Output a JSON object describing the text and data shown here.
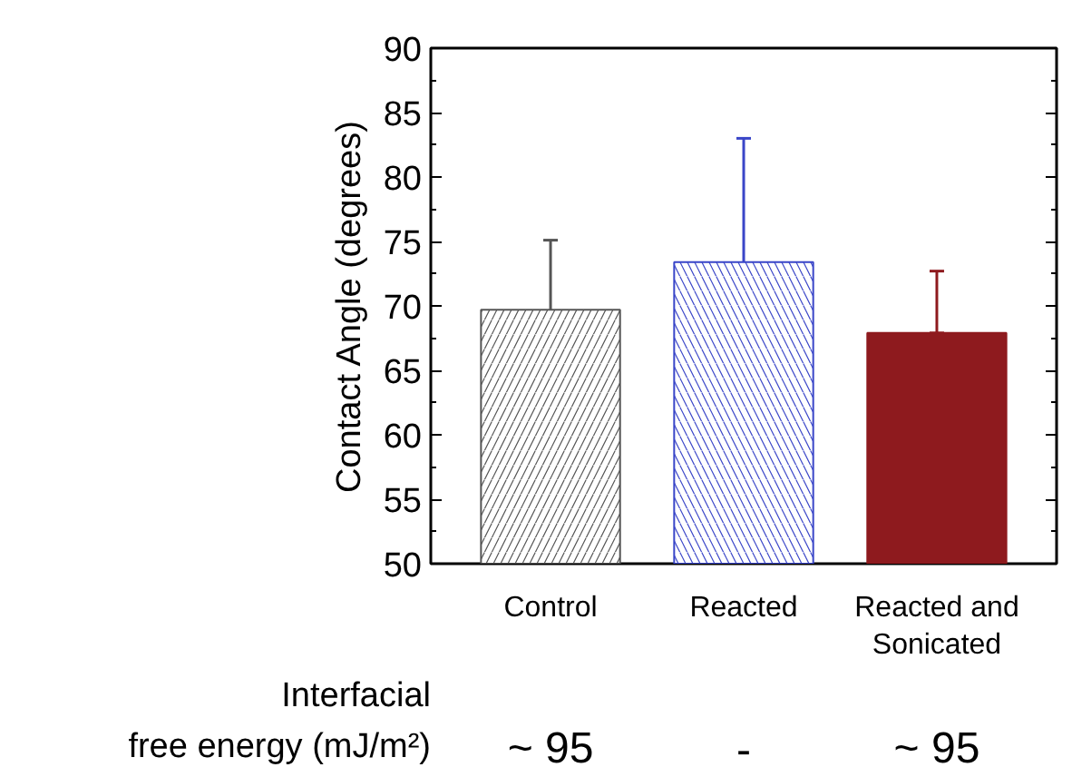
{
  "chart_data": {
    "type": "bar",
    "ylabel": "Contact Angle (degrees)",
    "categories": [
      "Control",
      "Reacted",
      "Reacted and\nSonicated"
    ],
    "values": [
      69.7,
      73.4,
      67.9
    ],
    "colors": [
      "#555555",
      "#3a46c8",
      "#8e1a1e"
    ],
    "errors": [
      [
        64.3,
        75.1
      ],
      [
        63.7,
        83.0
      ],
      [
        67.9,
        72.7
      ]
    ],
    "ylim": [
      50,
      90
    ],
    "yticks": [
      50,
      55,
      60,
      65,
      70,
      75,
      80,
      85,
      90
    ],
    "grid": false,
    "annotations": [
      "Interfacial\nfree energy (mJ/m²)",
      "~ 95",
      "-",
      "~ 95"
    ]
  }
}
